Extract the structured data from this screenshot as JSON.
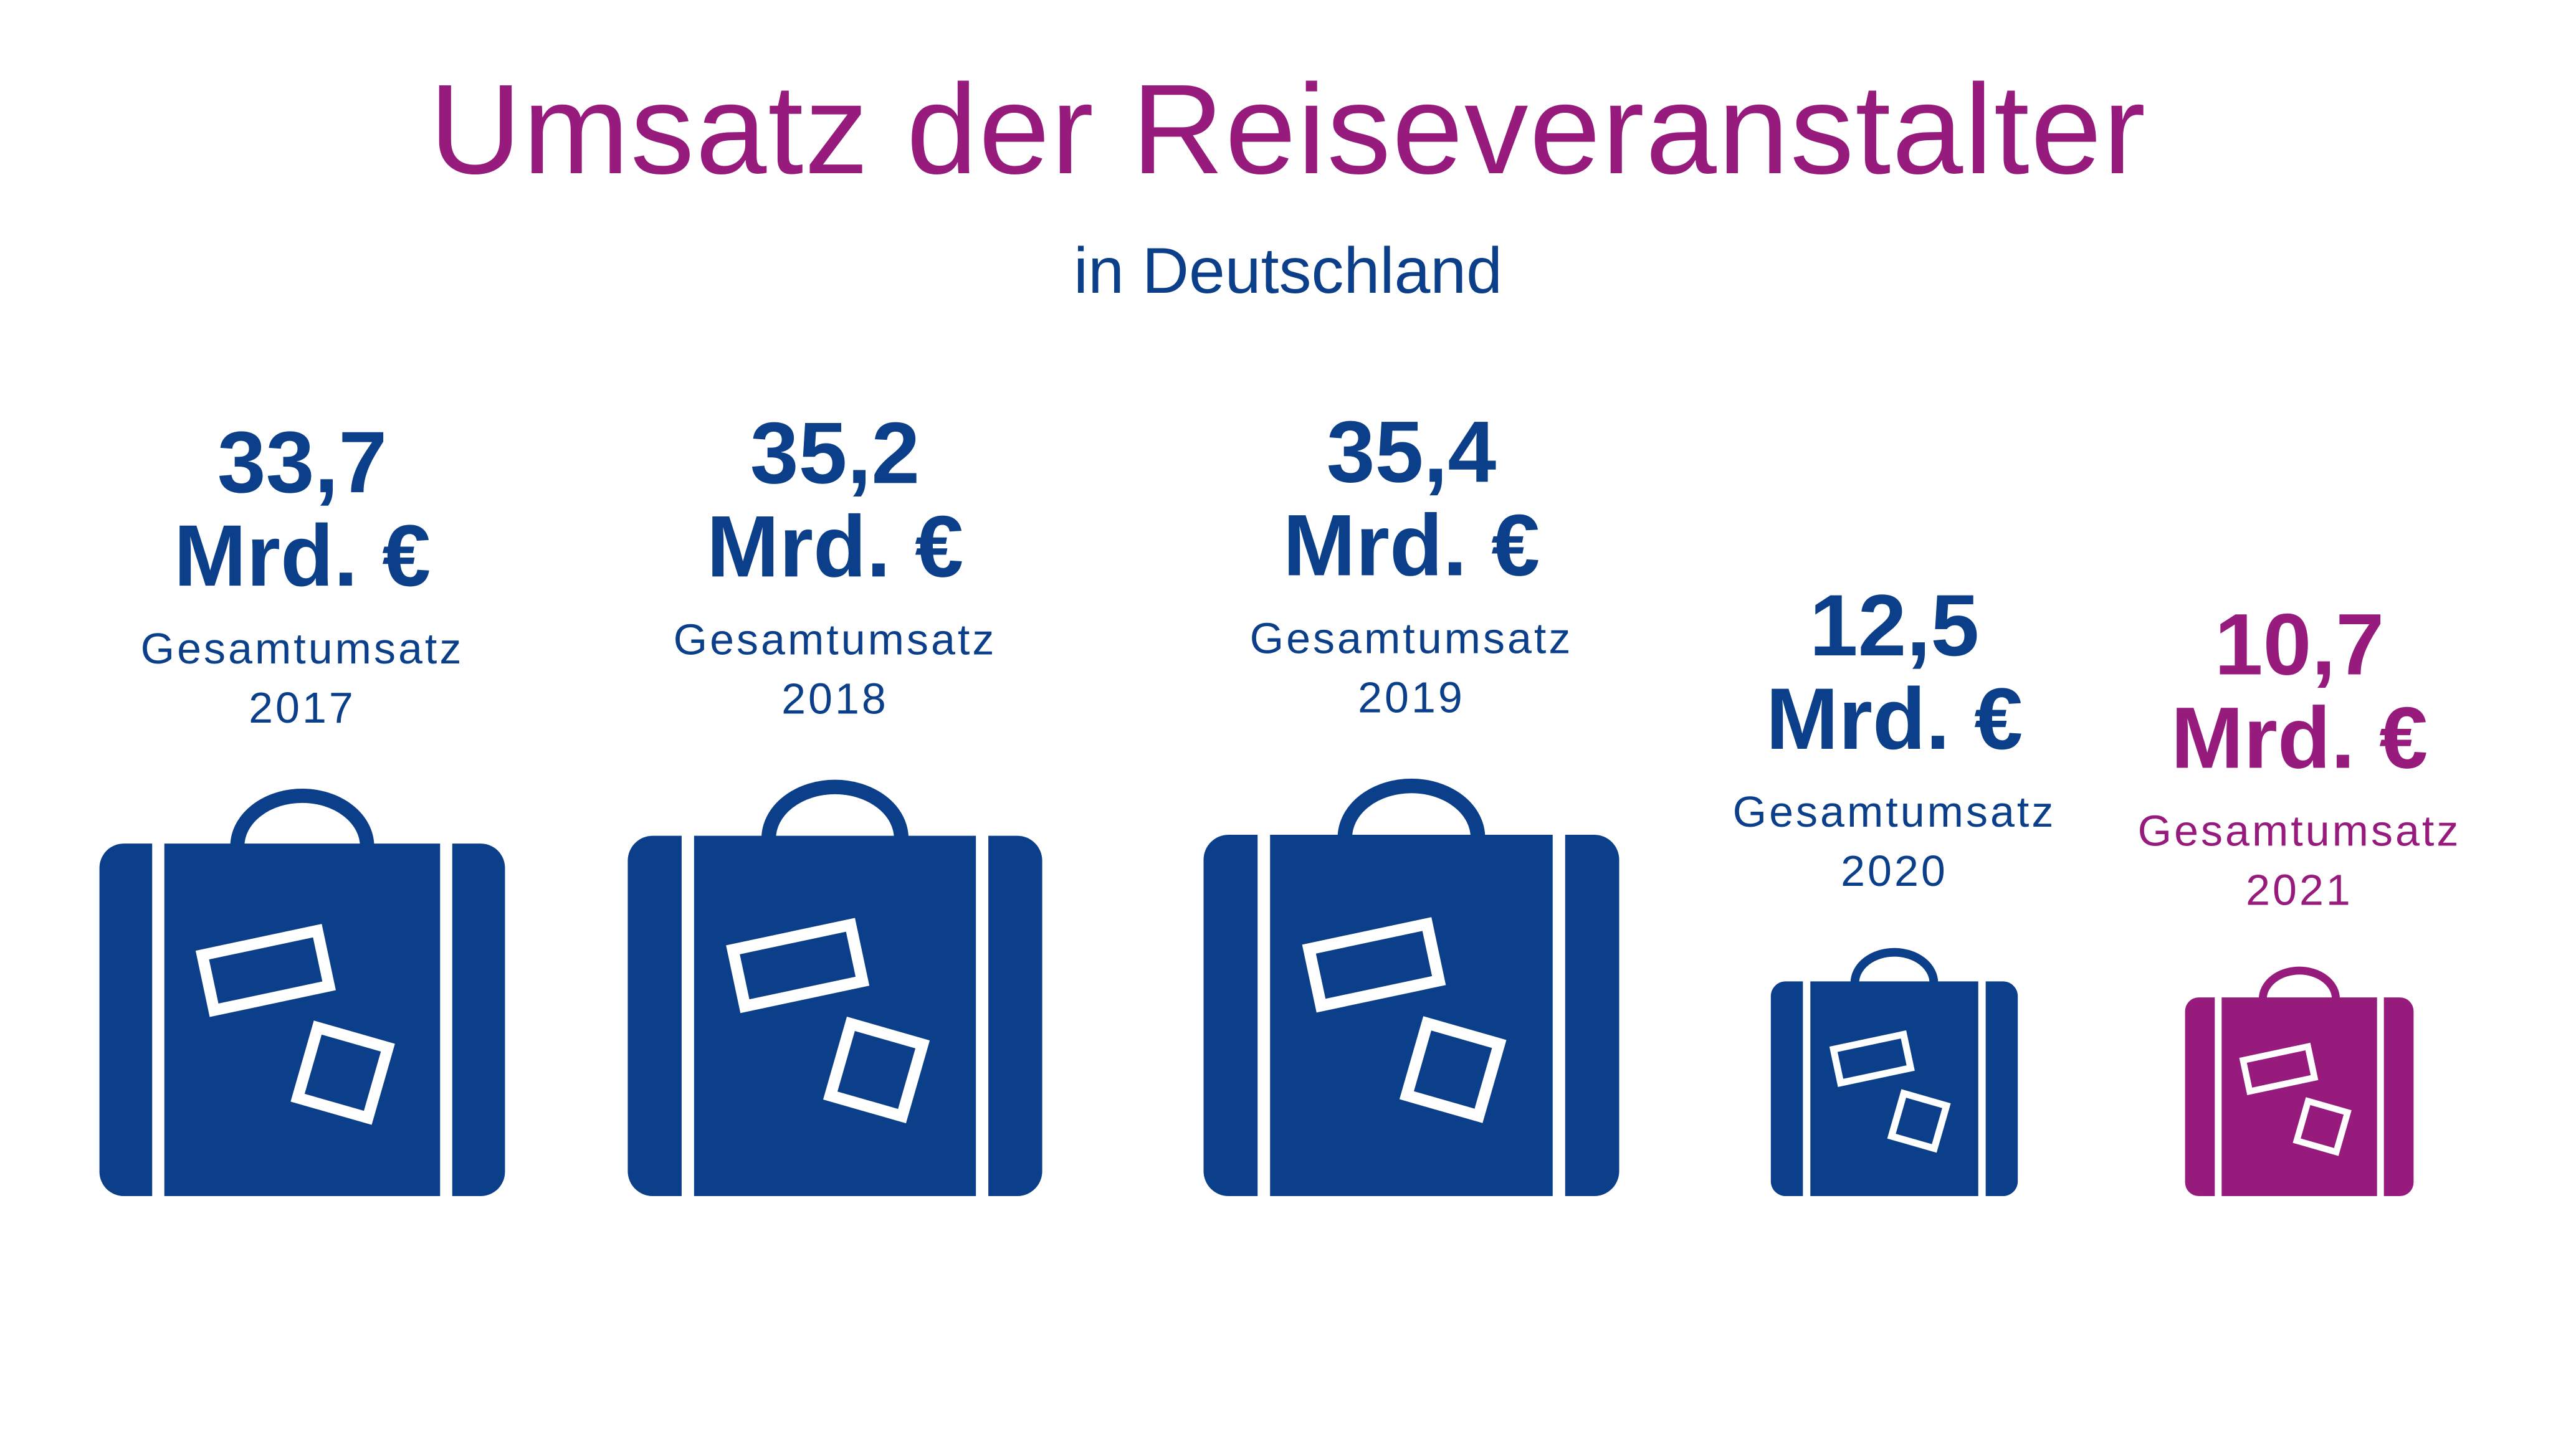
{
  "title": "Umsatz der Reiseveranstalter",
  "subtitle": "in Deutschland",
  "colors": {
    "primary_blue": "#0b3f8a",
    "accent_purple": "#961b7d",
    "background": "#ffffff"
  },
  "chart_data": {
    "type": "bar",
    "title": "Umsatz der Reiseveranstalter",
    "subtitle": "in Deutschland",
    "icon": "suitcase-icon",
    "unit": "Mrd. €",
    "categories": [
      "2017",
      "2018",
      "2019",
      "2020",
      "2021"
    ],
    "values": [
      33.7,
      35.2,
      35.4,
      12.5,
      10.7
    ],
    "value_labels": [
      "33,7",
      "35,2",
      "35,4",
      "12,5",
      "10,7"
    ],
    "caption": "Gesamtumsatz",
    "highlight": "2021",
    "grid": false,
    "legend": "none"
  }
}
